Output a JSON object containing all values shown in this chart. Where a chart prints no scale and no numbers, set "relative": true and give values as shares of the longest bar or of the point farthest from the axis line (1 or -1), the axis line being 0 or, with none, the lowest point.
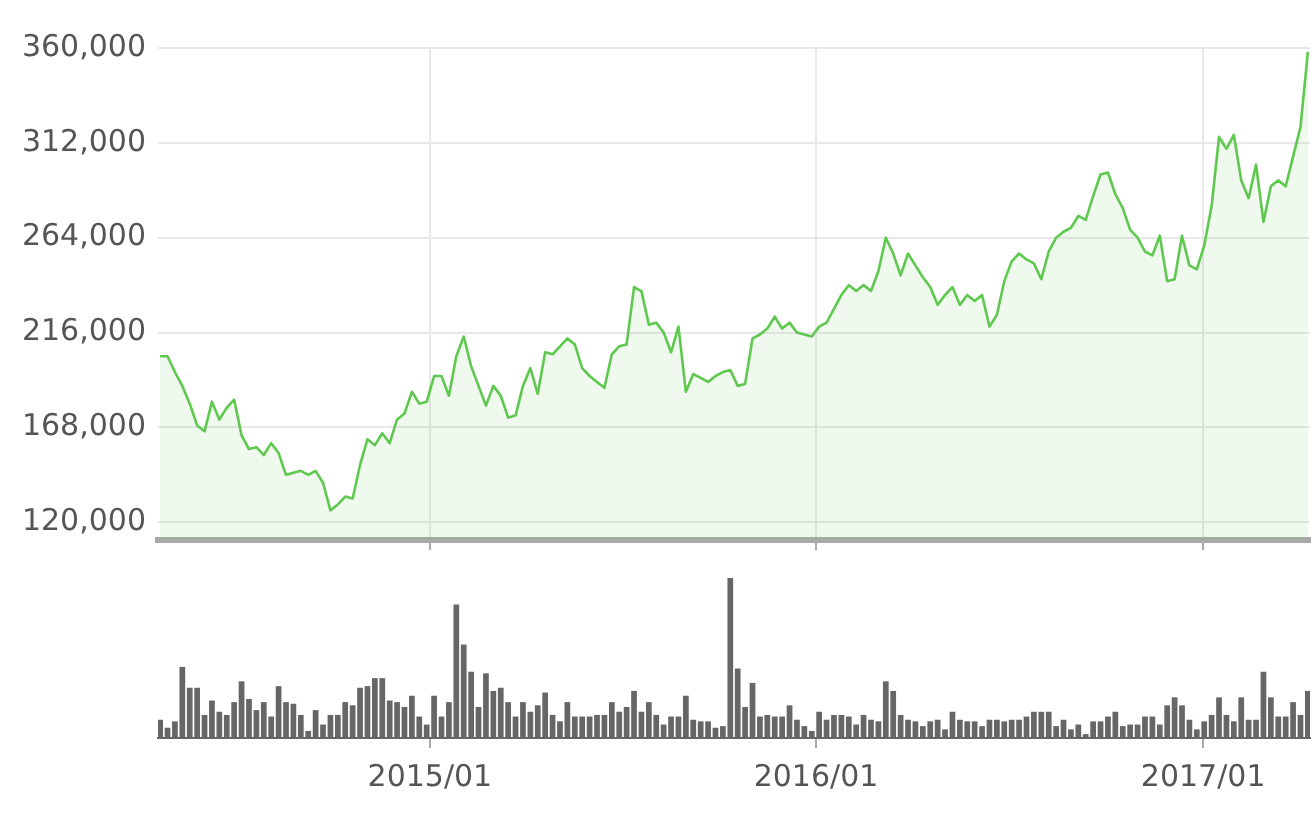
{
  "chart_data": [
    {
      "type": "area",
      "color": "#5ec84f",
      "x": [
        "2014-04-21",
        "2014-04-28",
        "2014-05-05",
        "2014-05-12",
        "2014-05-19",
        "2014-05-26",
        "2014-06-02",
        "2014-06-09",
        "2014-06-16",
        "2014-06-23",
        "2014-06-30",
        "2014-07-07",
        "2014-07-14",
        "2014-07-21",
        "2014-07-28",
        "2014-08-04",
        "2014-08-11",
        "2014-08-18",
        "2014-08-25",
        "2014-09-01",
        "2014-09-08",
        "2014-09-15",
        "2014-09-22",
        "2014-09-29",
        "2014-10-06",
        "2014-10-13",
        "2014-10-20",
        "2014-10-27",
        "2014-11-03",
        "2014-11-10",
        "2014-11-17",
        "2014-11-24",
        "2014-12-01",
        "2014-12-08",
        "2014-12-15",
        "2014-12-22",
        "2014-12-29",
        "2015-01-05",
        "2015-01-12",
        "2015-01-19",
        "2015-01-26",
        "2015-02-02",
        "2015-02-09",
        "2015-02-16",
        "2015-02-23",
        "2015-03-02",
        "2015-03-09",
        "2015-03-16",
        "2015-03-23",
        "2015-03-30",
        "2015-04-06",
        "2015-04-13",
        "2015-04-20",
        "2015-04-27",
        "2015-05-04",
        "2015-05-11",
        "2015-05-18",
        "2015-05-25",
        "2015-06-01",
        "2015-06-08",
        "2015-06-15",
        "2015-06-22",
        "2015-06-29",
        "2015-07-06",
        "2015-07-13",
        "2015-07-20",
        "2015-07-27",
        "2015-08-03",
        "2015-08-10",
        "2015-08-17",
        "2015-08-24",
        "2015-08-31",
        "2015-09-07",
        "2015-09-14",
        "2015-09-21",
        "2015-09-28",
        "2015-10-05",
        "2015-10-12",
        "2015-10-19",
        "2015-10-26",
        "2015-11-02",
        "2015-11-09",
        "2015-11-16",
        "2015-11-23",
        "2015-11-30",
        "2015-12-07",
        "2015-12-14",
        "2015-12-21",
        "2015-12-28",
        "2016-01-04",
        "2016-01-11",
        "2016-01-18",
        "2016-01-25",
        "2016-02-01",
        "2016-02-08",
        "2016-02-15",
        "2016-02-22",
        "2016-02-29",
        "2016-03-07",
        "2016-03-14",
        "2016-03-21",
        "2016-03-28",
        "2016-04-04",
        "2016-04-11",
        "2016-04-18",
        "2016-04-25",
        "2016-05-02",
        "2016-05-09",
        "2016-05-16",
        "2016-05-23",
        "2016-05-30",
        "2016-06-06",
        "2016-06-13",
        "2016-06-20",
        "2016-06-27",
        "2016-07-04",
        "2016-07-11",
        "2016-07-18",
        "2016-07-25",
        "2016-08-01",
        "2016-08-08",
        "2016-08-15",
        "2016-08-22",
        "2016-08-29",
        "2016-09-05",
        "2016-09-12",
        "2016-09-19",
        "2016-09-26",
        "2016-10-03",
        "2016-10-10",
        "2016-10-17",
        "2016-10-24",
        "2016-10-31",
        "2016-11-07",
        "2016-11-14",
        "2016-11-21",
        "2016-11-28",
        "2016-12-05",
        "2016-12-12",
        "2016-12-19",
        "2016-12-26",
        "2017-01-02",
        "2017-01-09",
        "2017-01-16",
        "2017-01-23",
        "2017-01-30",
        "2017-02-06",
        "2017-02-13",
        "2017-02-20",
        "2017-02-27",
        "2017-03-06",
        "2017-03-13",
        "2017-03-20",
        "2017-03-27",
        "2017-04-03",
        "2017-04-10"
      ],
      "values": [
        204000,
        204000,
        196000,
        189000,
        180000,
        169000,
        166000,
        181000,
        172000,
        178000,
        182000,
        164000,
        157000,
        158000,
        154000,
        160000,
        155000,
        144000,
        145000,
        146000,
        144000,
        146000,
        140000,
        126000,
        129000,
        133000,
        132000,
        149000,
        162000,
        159000,
        165000,
        160000,
        172000,
        175000,
        186000,
        180000,
        181000,
        194000,
        194000,
        184000,
        204000,
        214000,
        199000,
        189000,
        179000,
        189000,
        184000,
        173000,
        174000,
        189000,
        198000,
        185000,
        206000,
        205000,
        209000,
        213000,
        210000,
        198000,
        194000,
        191000,
        188000,
        205000,
        209000,
        210000,
        239000,
        237000,
        220000,
        221000,
        216000,
        206000,
        219000,
        186000,
        195000,
        193000,
        191000,
        194000,
        196000,
        197000,
        189000,
        190000,
        213000,
        215000,
        218000,
        224000,
        218000,
        221000,
        216000,
        215000,
        214000,
        219000,
        221000,
        228000,
        235000,
        240000,
        237000,
        240000,
        237000,
        247000,
        264000,
        256000,
        245000,
        256000,
        250000,
        244000,
        239000,
        230000,
        235000,
        239000,
        230000,
        235000,
        232000,
        235000,
        219000,
        225000,
        242000,
        252000,
        256000,
        253000,
        251000,
        243000,
        257000,
        264000,
        267000,
        269000,
        275000,
        273000,
        285000,
        296000,
        297000,
        286000,
        279000,
        268000,
        264000,
        257000,
        255000,
        265000,
        242000,
        243000,
        265000,
        250000,
        248000,
        260000,
        280000,
        315000,
        309000,
        316000,
        293000,
        284000,
        301000,
        272000,
        290000,
        293000,
        290000,
        305000,
        320000,
        358000
      ],
      "xlim": [
        "2014-04-19",
        "2017-04-12"
      ],
      "xticks": [
        {
          "value": "2015-01-01",
          "label": null
        },
        {
          "value": "2016-01-01",
          "label": null
        },
        {
          "value": "2017-01-01",
          "label": null
        }
      ],
      "ylim": [
        111000,
        360000
      ],
      "yticks": [
        {
          "value": 120000,
          "label": "120,000"
        },
        {
          "value": 168000,
          "label": "168,000"
        },
        {
          "value": 216000,
          "label": "216,000"
        },
        {
          "value": 264000,
          "label": "264,000"
        },
        {
          "value": 312000,
          "label": "312,000"
        },
        {
          "value": 360000,
          "label": "360,000"
        }
      ],
      "grid": true,
      "tick_labels": "y"
    },
    {
      "type": "bar",
      "color": "#666666",
      "relative": true,
      "x": [
        "2014-04-21",
        "2014-04-28",
        "2014-05-05",
        "2014-05-12",
        "2014-05-19",
        "2014-05-26",
        "2014-06-02",
        "2014-06-09",
        "2014-06-16",
        "2014-06-23",
        "2014-06-30",
        "2014-07-07",
        "2014-07-14",
        "2014-07-21",
        "2014-07-28",
        "2014-08-04",
        "2014-08-11",
        "2014-08-18",
        "2014-08-25",
        "2014-09-01",
        "2014-09-08",
        "2014-09-15",
        "2014-09-22",
        "2014-09-29",
        "2014-10-06",
        "2014-10-13",
        "2014-10-20",
        "2014-10-27",
        "2014-11-03",
        "2014-11-10",
        "2014-11-17",
        "2014-11-24",
        "2014-12-01",
        "2014-12-08",
        "2014-12-15",
        "2014-12-22",
        "2014-12-29",
        "2015-01-05",
        "2015-01-12",
        "2015-01-19",
        "2015-01-26",
        "2015-02-02",
        "2015-02-09",
        "2015-02-16",
        "2015-02-23",
        "2015-03-02",
        "2015-03-09",
        "2015-03-16",
        "2015-03-23",
        "2015-03-30",
        "2015-04-06",
        "2015-04-13",
        "2015-04-20",
        "2015-04-27",
        "2015-05-04",
        "2015-05-11",
        "2015-05-18",
        "2015-05-25",
        "2015-06-01",
        "2015-06-08",
        "2015-06-15",
        "2015-06-22",
        "2015-06-29",
        "2015-07-06",
        "2015-07-13",
        "2015-07-20",
        "2015-07-27",
        "2015-08-03",
        "2015-08-10",
        "2015-08-17",
        "2015-08-24",
        "2015-08-31",
        "2015-09-07",
        "2015-09-14",
        "2015-09-21",
        "2015-09-28",
        "2015-10-05",
        "2015-10-12",
        "2015-10-19",
        "2015-10-26",
        "2015-11-02",
        "2015-11-09",
        "2015-11-16",
        "2015-11-23",
        "2015-11-30",
        "2015-12-07",
        "2015-12-14",
        "2015-12-21",
        "2015-12-28",
        "2016-01-04",
        "2016-01-11",
        "2016-01-18",
        "2016-01-25",
        "2016-02-01",
        "2016-02-08",
        "2016-02-15",
        "2016-02-22",
        "2016-02-29",
        "2016-03-07",
        "2016-03-14",
        "2016-03-21",
        "2016-03-28",
        "2016-04-04",
        "2016-04-11",
        "2016-04-18",
        "2016-04-25",
        "2016-05-02",
        "2016-05-09",
        "2016-05-16",
        "2016-05-23",
        "2016-05-30",
        "2016-06-06",
        "2016-06-13",
        "2016-06-20",
        "2016-06-27",
        "2016-07-04",
        "2016-07-11",
        "2016-07-18",
        "2016-07-25",
        "2016-08-01",
        "2016-08-08",
        "2016-08-15",
        "2016-08-22",
        "2016-08-29",
        "2016-09-05",
        "2016-09-12",
        "2016-09-19",
        "2016-09-26",
        "2016-10-03",
        "2016-10-10",
        "2016-10-17",
        "2016-10-24",
        "2016-10-31",
        "2016-11-07",
        "2016-11-14",
        "2016-11-21",
        "2016-11-28",
        "2016-12-05",
        "2016-12-12",
        "2016-12-19",
        "2016-12-26",
        "2017-01-02",
        "2017-01-09",
        "2017-01-16",
        "2017-01-23",
        "2017-01-30",
        "2017-02-06",
        "2017-02-13",
        "2017-02-20",
        "2017-02-27",
        "2017-03-06",
        "2017-03-13",
        "2017-03-20",
        "2017-03-27",
        "2017-04-03",
        "2017-04-10"
      ],
      "values": [
        0.11,
        0.06,
        0.1,
        0.44,
        0.31,
        0.31,
        0.14,
        0.23,
        0.16,
        0.14,
        0.22,
        0.35,
        0.24,
        0.17,
        0.22,
        0.13,
        0.32,
        0.22,
        0.21,
        0.14,
        0.04,
        0.17,
        0.08,
        0.14,
        0.14,
        0.22,
        0.2,
        0.31,
        0.32,
        0.37,
        0.37,
        0.23,
        0.22,
        0.19,
        0.26,
        0.13,
        0.08,
        0.26,
        0.13,
        0.22,
        0.83,
        0.58,
        0.41,
        0.19,
        0.4,
        0.29,
        0.31,
        0.22,
        0.13,
        0.22,
        0.16,
        0.2,
        0.28,
        0.14,
        0.1,
        0.22,
        0.13,
        0.13,
        0.13,
        0.14,
        0.14,
        0.22,
        0.16,
        0.19,
        0.29,
        0.16,
        0.22,
        0.14,
        0.08,
        0.13,
        0.13,
        0.26,
        0.11,
        0.1,
        0.1,
        0.06,
        0.07,
        1,
        0.43,
        0.19,
        0.34,
        0.13,
        0.14,
        0.13,
        0.13,
        0.2,
        0.11,
        0.07,
        0.04,
        0.16,
        0.11,
        0.14,
        0.14,
        0.13,
        0.08,
        0.14,
        0.11,
        0.1,
        0.35,
        0.29,
        0.14,
        0.11,
        0.1,
        0.07,
        0.1,
        0.11,
        0.05,
        0.16,
        0.11,
        0.1,
        0.1,
        0.07,
        0.11,
        0.11,
        0.1,
        0.11,
        0.11,
        0.13,
        0.16,
        0.16,
        0.16,
        0.07,
        0.11,
        0.05,
        0.08,
        0.02,
        0.1,
        0.1,
        0.13,
        0.16,
        0.07,
        0.08,
        0.08,
        0.13,
        0.13,
        0.08,
        0.2,
        0.25,
        0.2,
        0.11,
        0.05,
        0.1,
        0.14,
        0.25,
        0.14,
        0.1,
        0.25,
        0.11,
        0.11,
        0.41,
        0.25,
        0.13,
        0.13,
        0.22,
        0.14,
        0.29
      ],
      "xlim": [
        "2014-04-19",
        "2017-04-12"
      ],
      "xticks": [
        {
          "value": "2015-01-01",
          "label": "2015/01"
        },
        {
          "value": "2016-01-01",
          "label": "2016/01"
        },
        {
          "value": "2017-01-01",
          "label": "2017/01"
        }
      ],
      "tick_labels": "x"
    }
  ]
}
